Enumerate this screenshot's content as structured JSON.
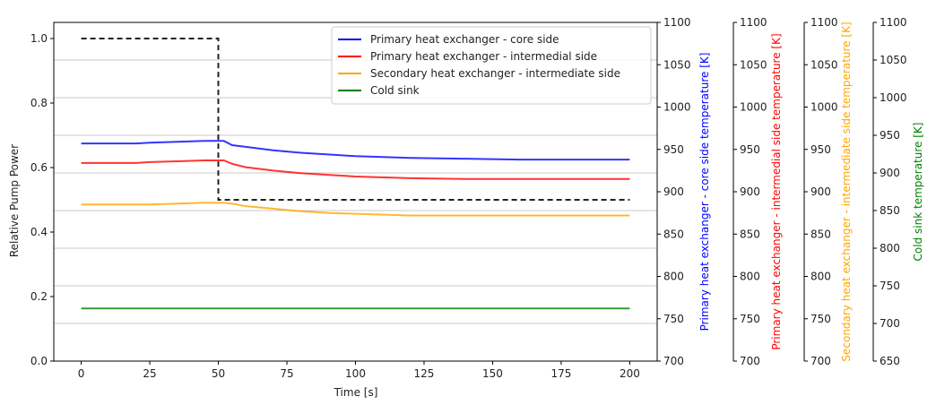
{
  "chart_data": {
    "type": "line",
    "title": "",
    "xlabel": "Time [s]",
    "ylabel": "Relative Pump Power",
    "xlim": [
      -10,
      210
    ],
    "ylim": [
      0,
      1.05
    ],
    "xticks": [
      0,
      25,
      50,
      75,
      100,
      125,
      150,
      175,
      200
    ],
    "yticks": [
      0.0,
      0.2,
      0.4,
      0.6,
      0.8,
      1.0
    ],
    "grid": "horizontal gridlines from the rightmost temperature axis",
    "legend_position": "top-right",
    "right_axes": [
      {
        "label": "Primary heat exchanger - core side temperature [K]",
        "color": "#0000ff",
        "range": [
          700,
          1100
        ],
        "ticks": [
          700,
          750,
          800,
          850,
          900,
          950,
          1000,
          1050,
          1100
        ]
      },
      {
        "label": "Primary heat exchanger - intermedial side temperature [K]",
        "color": "#ff0000",
        "range": [
          700,
          1100
        ],
        "ticks": [
          700,
          750,
          800,
          850,
          900,
          950,
          1000,
          1050,
          1100
        ]
      },
      {
        "label": "Secondary heat exchanger - intermediate side temperature [K]",
        "color": "#ffa500",
        "range": [
          700,
          1100
        ],
        "ticks": [
          700,
          750,
          800,
          850,
          900,
          950,
          1000,
          1050,
          1100
        ]
      },
      {
        "label": "Cold sink temperature [K]",
        "color": "#008000",
        "range": [
          650,
          1100
        ],
        "ticks": [
          650,
          700,
          750,
          800,
          850,
          900,
          950,
          1000,
          1050,
          1100
        ]
      }
    ],
    "pump_power": {
      "color": "#222222",
      "dash": "dashed",
      "x": [
        0,
        50,
        50,
        200
      ],
      "y": [
        1.0,
        1.0,
        0.5,
        0.5
      ]
    },
    "series": [
      {
        "name": "Primary heat exchanger - core side",
        "color": "#0000ff",
        "axis": 0,
        "x": [
          0,
          20,
          25,
          35,
          45,
          52,
          55,
          60,
          70,
          80,
          90,
          100,
          120,
          140,
          160,
          180,
          200
        ],
        "y": [
          957,
          957,
          958,
          959,
          960,
          960,
          955,
          953,
          949,
          946,
          944,
          942,
          940,
          939,
          938,
          938,
          938
        ]
      },
      {
        "name": "Primary heat exchanger - intermedial side",
        "color": "#ff0000",
        "axis": 1,
        "x": [
          0,
          20,
          25,
          35,
          45,
          52,
          55,
          60,
          70,
          80,
          90,
          100,
          120,
          140,
          160,
          180,
          200
        ],
        "y": [
          934,
          934,
          935,
          936,
          937,
          937,
          933,
          929,
          925,
          922,
          920,
          918,
          916,
          915,
          915,
          915,
          915
        ]
      },
      {
        "name": "Secondary heat exchanger - intermediate side",
        "color": "#ffa500",
        "axis": 2,
        "x": [
          0,
          20,
          25,
          35,
          45,
          52,
          55,
          60,
          70,
          80,
          90,
          100,
          120,
          140,
          160,
          180,
          200
        ],
        "y": [
          885,
          885,
          885,
          886,
          887,
          887,
          886,
          883,
          880,
          877,
          875,
          874,
          872,
          872,
          872,
          872,
          872
        ]
      },
      {
        "name": "Cold sink",
        "color": "#008000",
        "axis": 3,
        "x": [
          0,
          200
        ],
        "y": [
          720,
          720
        ]
      }
    ]
  }
}
